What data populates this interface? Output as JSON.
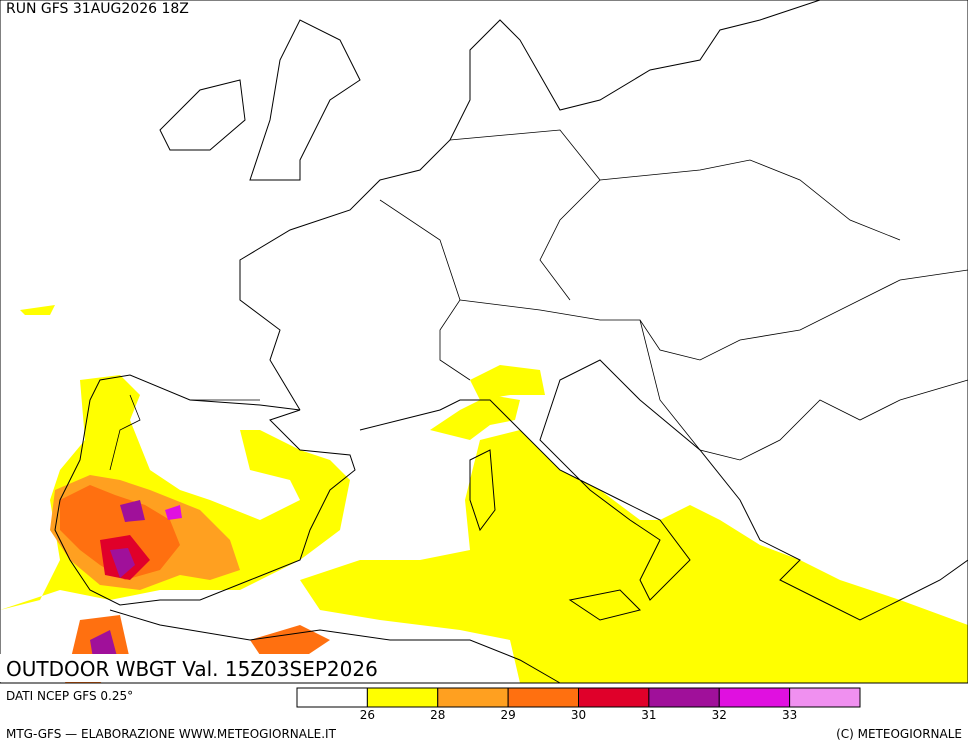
{
  "header": {
    "run": "RUN GFS 31AUG2026 18Z"
  },
  "map": {
    "title": "OUTDOOR WBGT Val. 15Z03SEP2026"
  },
  "footer": {
    "source": "DATI NCEP GFS 0.25°",
    "credit": "MTG-GFS — ELABORAZIONE WWW.METEOGIORNALE.IT",
    "copyright": "(C) METEOGIORNALE"
  },
  "legend": {
    "colors": [
      "#ffffff",
      "#ffff00",
      "#ffa020",
      "#ff7010",
      "#e0002a",
      "#a0109a",
      "#e010e0",
      "#f090f0"
    ],
    "ticks": [
      26,
      28,
      29,
      30,
      31,
      32,
      33
    ]
  }
}
